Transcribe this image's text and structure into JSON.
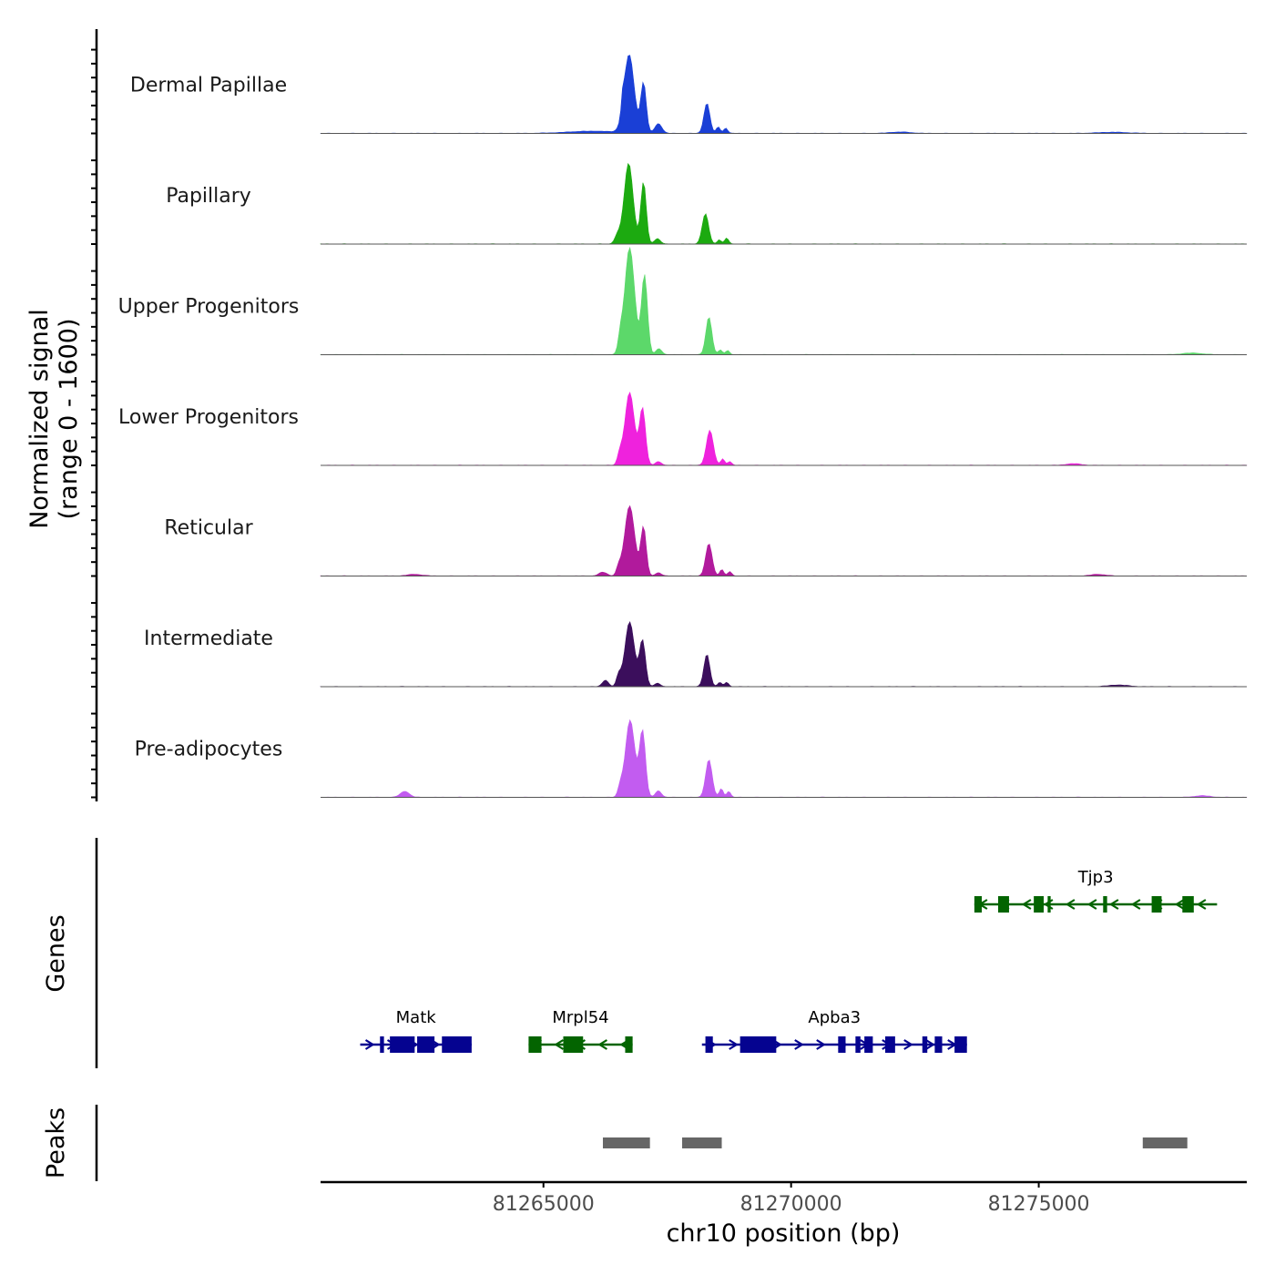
{
  "chart_data": {
    "type": "area",
    "title": "",
    "chromosome": "chr10",
    "xlabel": "chr10 position (bp)",
    "xlim": [
      81260500,
      81279200
    ],
    "xticks": [
      81265000,
      81270000,
      81275000
    ],
    "xtick_labels": [
      "81265000",
      "81270000",
      "81275000"
    ],
    "signal_panel": {
      "ylabel_line1": "Normalized signal",
      "ylabel_line2": "(range 0 - 1600)",
      "ylim": [
        0,
        1600
      ],
      "tracks": [
        {
          "name": "Dermal Papillae",
          "color": "#1a3fd6",
          "peaks": [
            [
              81266600,
              25,
              230
            ],
            [
              81266730,
              100,
              1450
            ],
            [
              81267020,
              55,
              930
            ],
            [
              81267320,
              70,
              180
            ],
            [
              81268300,
              60,
              560
            ],
            [
              81268530,
              40,
              120
            ],
            [
              81268680,
              40,
              100
            ],
            [
              81266000,
              500,
              40
            ],
            [
              81272200,
              200,
              25
            ],
            [
              81276500,
              300,
              20
            ]
          ]
        },
        {
          "name": "Papillary",
          "color": "#1caa10",
          "peaks": [
            [
              81266500,
              60,
              160
            ],
            [
              81266720,
              90,
              1500
            ],
            [
              81267020,
              55,
              1150
            ],
            [
              81267300,
              60,
              100
            ],
            [
              81268270,
              65,
              560
            ],
            [
              81268550,
              40,
              80
            ],
            [
              81268700,
              40,
              110
            ]
          ]
        },
        {
          "name": "Upper Progenitors",
          "color": "#5cd86a",
          "peaks": [
            [
              81266550,
              40,
              240
            ],
            [
              81266740,
              100,
              1980
            ],
            [
              81267040,
              60,
              1470
            ],
            [
              81267330,
              60,
              110
            ],
            [
              81268340,
              60,
              700
            ],
            [
              81268570,
              40,
              90
            ],
            [
              81268720,
              40,
              80
            ],
            [
              81278100,
              200,
              30
            ]
          ]
        },
        {
          "name": "Lower Progenitors",
          "color": "#ef22dd",
          "peaks": [
            [
              81266540,
              45,
              190
            ],
            [
              81266740,
              95,
              1350
            ],
            [
              81267000,
              60,
              1050
            ],
            [
              81267320,
              60,
              70
            ],
            [
              81268360,
              70,
              650
            ],
            [
              81268620,
              40,
              120
            ],
            [
              81268760,
              40,
              70
            ],
            [
              81275700,
              150,
              30
            ]
          ]
        },
        {
          "name": "Reticular",
          "color": "#b11a9c",
          "peaks": [
            [
              81266200,
              80,
              70
            ],
            [
              81266520,
              45,
              150
            ],
            [
              81266740,
              100,
              1300
            ],
            [
              81267020,
              55,
              900
            ],
            [
              81267320,
              60,
              60
            ],
            [
              81268340,
              65,
              600
            ],
            [
              81268600,
              40,
              120
            ],
            [
              81268760,
              40,
              80
            ],
            [
              81262400,
              150,
              30
            ],
            [
              81276200,
              150,
              30
            ]
          ]
        },
        {
          "name": "Intermediate",
          "color": "#3b0e5c",
          "peaks": [
            [
              81266250,
              60,
              120
            ],
            [
              81266520,
              45,
              200
            ],
            [
              81266740,
              95,
              1200
            ],
            [
              81267000,
              60,
              850
            ],
            [
              81267300,
              60,
              60
            ],
            [
              81268300,
              60,
              600
            ],
            [
              81268560,
              40,
              80
            ],
            [
              81268700,
              40,
              80
            ],
            [
              81276600,
              200,
              30
            ]
          ]
        },
        {
          "name": "Pre-adipocytes",
          "color": "#c25cf0",
          "peaks": [
            [
              81262200,
              90,
              110
            ],
            [
              81266550,
              45,
              170
            ],
            [
              81266750,
              95,
              1430
            ],
            [
              81267000,
              60,
              1220
            ],
            [
              81267320,
              60,
              120
            ],
            [
              81268340,
              65,
              700
            ],
            [
              81268590,
              40,
              160
            ],
            [
              81268740,
              40,
              110
            ],
            [
              81278300,
              150,
              30
            ]
          ]
        }
      ]
    },
    "genes_panel": {
      "ylabel": "Genes",
      "genes": [
        {
          "name": "Tjp3",
          "strand": "-",
          "row": 1,
          "color": "#036400",
          "start": 81273700,
          "end": 81278600,
          "exons": [
            [
              81273700,
              81273850
            ],
            [
              81274180,
              81274400
            ],
            [
              81274900,
              81275100
            ],
            [
              81275180,
              81275240
            ],
            [
              81276300,
              81276380
            ],
            [
              81277280,
              81277480
            ],
            [
              81277900,
              81278130
            ]
          ]
        },
        {
          "name": "Matk",
          "strand": "+",
          "row": 2,
          "color": "#050390",
          "start": 81261300,
          "end": 81263550,
          "exons": [
            [
              81261700,
              81261780
            ],
            [
              81261900,
              81262400
            ],
            [
              81262450,
              81262800
            ],
            [
              81262950,
              81263550
            ]
          ]
        },
        {
          "name": "Mrpl54",
          "strand": "-",
          "row": 2,
          "color": "#036400",
          "start": 81264700,
          "end": 81266800,
          "exons": [
            [
              81264700,
              81264960
            ],
            [
              81265400,
              81265800
            ],
            [
              81266650,
              81266800
            ]
          ]
        },
        {
          "name": "Apba3",
          "strand": "+",
          "row": 2,
          "color": "#050390",
          "start": 81268200,
          "end": 81273550,
          "exons": [
            [
              81268270,
              81268420
            ],
            [
              81268970,
              81269700
            ],
            [
              81270950,
              81271100
            ],
            [
              81271300,
              81271400
            ],
            [
              81271480,
              81271650
            ],
            [
              81271900,
              81272100
            ],
            [
              81272650,
              81272750
            ],
            [
              81272900,
              81273050
            ],
            [
              81273300,
              81273550
            ]
          ]
        }
      ]
    },
    "peaks_panel": {
      "ylabel": "Peaks",
      "color": "#666666",
      "regions": [
        [
          81266200,
          81267150
        ],
        [
          81267800,
          81268600
        ],
        [
          81277100,
          81278000
        ]
      ]
    }
  }
}
